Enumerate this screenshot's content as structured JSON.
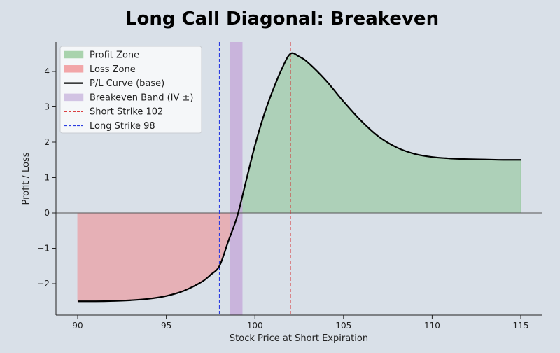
{
  "chart_data": {
    "type": "line",
    "title": "Long Call Diagonal: Breakeven",
    "xlabel": "Stock Price at Short Expiration",
    "ylabel": "Profit / Loss",
    "xlim": [
      89,
      116.5
    ],
    "ylim": [
      -2.5,
      4.5
    ],
    "grid": false,
    "legend_position": "top-left",
    "xticks": [
      90,
      95,
      100,
      105,
      110,
      115
    ],
    "xtick_labels": [
      "90",
      "95",
      "100",
      "105",
      "110",
      "115"
    ],
    "yticks": [
      -2,
      -1,
      0,
      1,
      2,
      3,
      4
    ],
    "ytick_labels": [
      "−2",
      "−1",
      "0",
      "1",
      "2",
      "3",
      "4"
    ],
    "series": [
      {
        "name": "P/L Curve (base)",
        "color": "#000000",
        "x": [
          90,
          91,
          92,
          93,
          94,
          95,
          96,
          97,
          97.5,
          98,
          98.5,
          99,
          99.5,
          100,
          100.5,
          101,
          101.5,
          102,
          102.5,
          103,
          104,
          105,
          106,
          107,
          108,
          109,
          110,
          111,
          112,
          113,
          114,
          115
        ],
        "y": [
          -2.5,
          -2.5,
          -2.49,
          -2.47,
          -2.43,
          -2.35,
          -2.2,
          -1.95,
          -1.75,
          -1.5,
          -0.8,
          -0.1,
          0.9,
          1.9,
          2.75,
          3.45,
          4.05,
          4.5,
          4.42,
          4.25,
          3.75,
          3.15,
          2.6,
          2.15,
          1.85,
          1.67,
          1.58,
          1.54,
          1.52,
          1.51,
          1.5,
          1.5
        ]
      }
    ],
    "shaded_regions": [
      {
        "name": "Profit Zone",
        "color": "#8fc597"
      },
      {
        "name": "Loss Zone",
        "color": "#f0888c"
      }
    ],
    "bands": [
      {
        "name": "Breakeven Band (IV ±)",
        "x0": 98.6,
        "x1": 99.3,
        "color": "#c3a6d8"
      }
    ],
    "vlines": [
      {
        "name": "Short Strike 102",
        "x": 102,
        "color": "#d62728",
        "style": "dashed"
      },
      {
        "name": "Long Strike 98",
        "x": 98,
        "color": "#2b3de0",
        "style": "dashed"
      }
    ],
    "legend": [
      {
        "label": "Profit Zone",
        "kind": "patch",
        "color": "#a9d3ad"
      },
      {
        "label": "Loss Zone",
        "kind": "patch",
        "color": "#f2a6a8"
      },
      {
        "label": "P/L Curve (base)",
        "kind": "line",
        "color": "#000000"
      },
      {
        "label": "Breakeven Band (IV ±)",
        "kind": "patch",
        "color": "#d2c3e3"
      },
      {
        "label": "Short Strike 102",
        "kind": "dash",
        "color": "#d62728"
      },
      {
        "label": "Long Strike 98",
        "kind": "dash",
        "color": "#2b3de0"
      }
    ]
  }
}
